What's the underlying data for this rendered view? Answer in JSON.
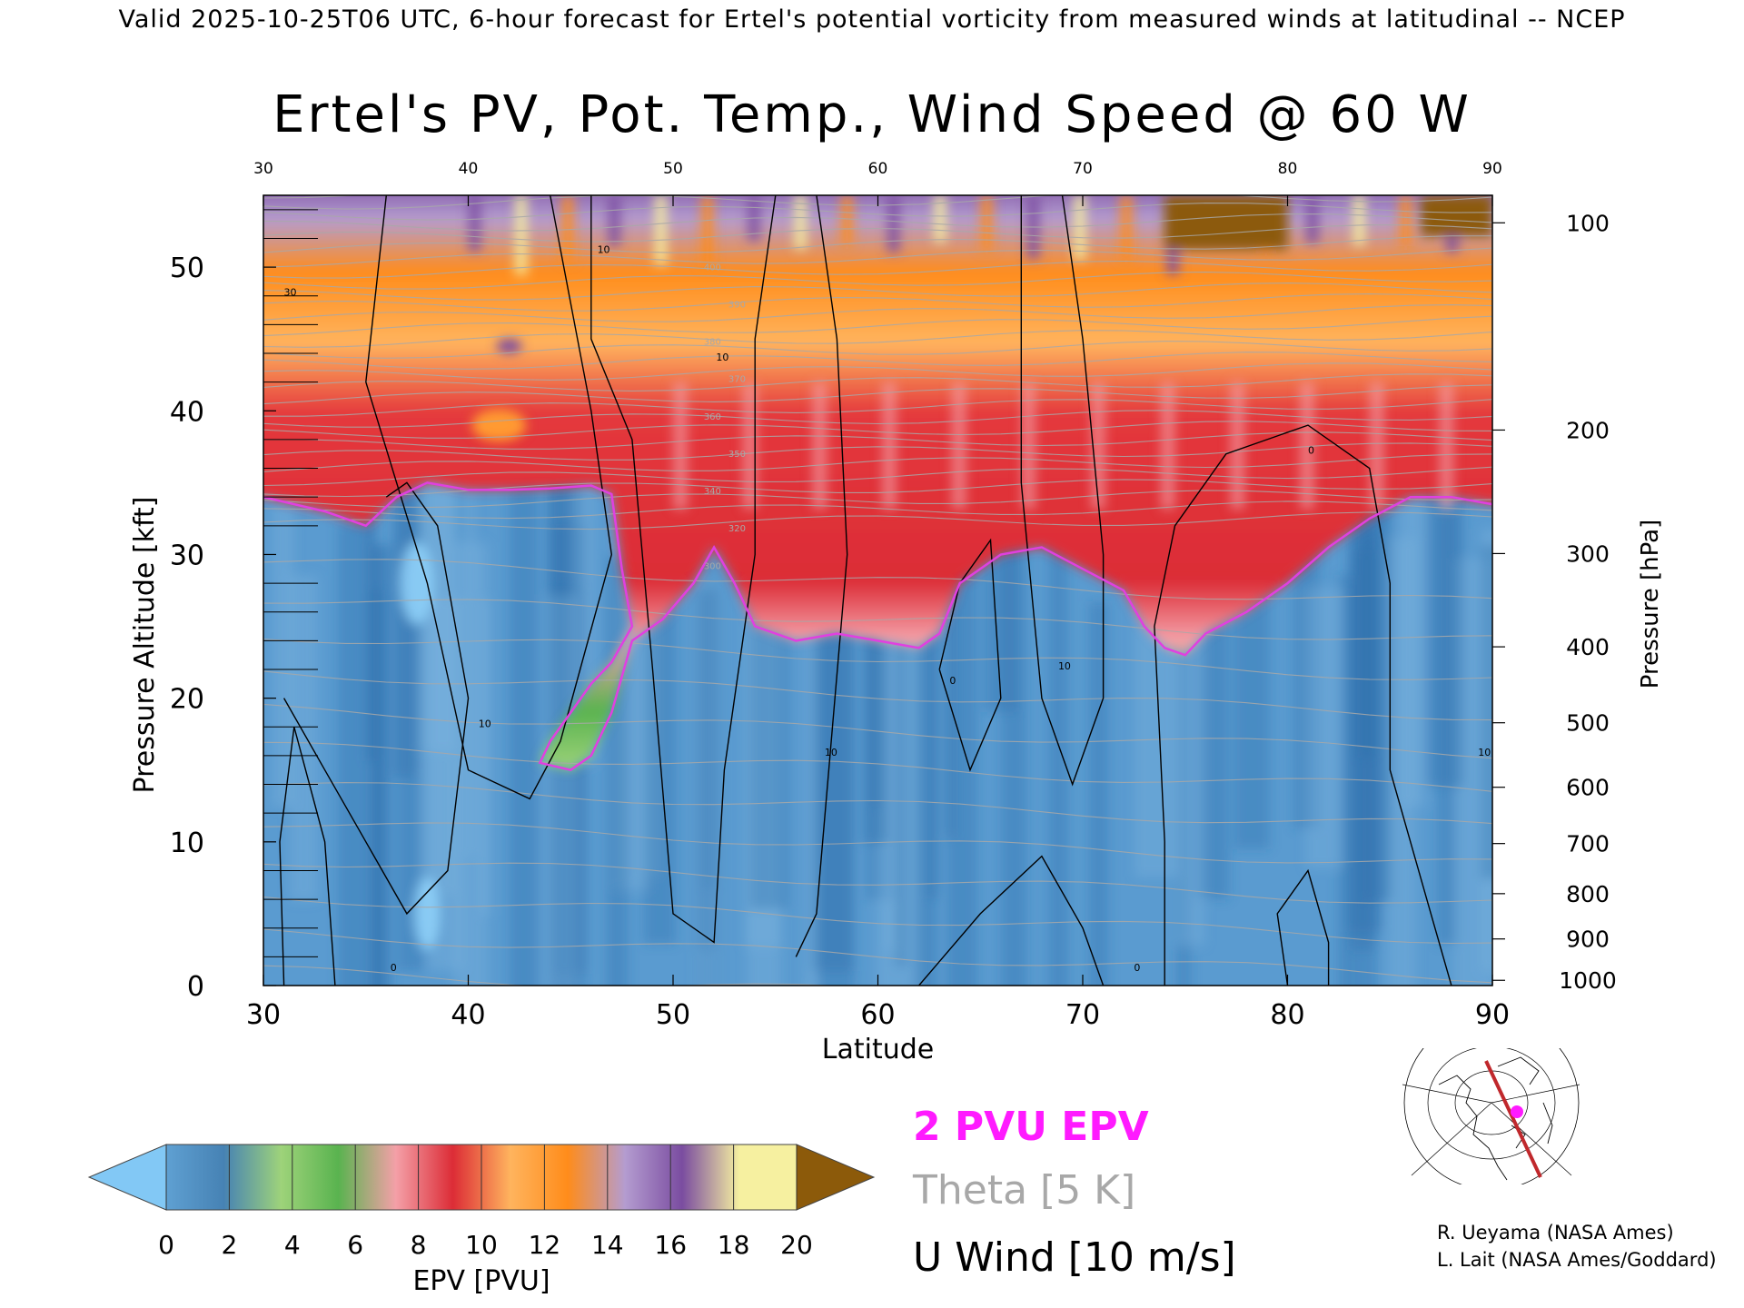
{
  "header": {
    "valid_line": "Valid 2025-10-25T06 UTC, 6-hour forecast for Ertel's potential vorticity from measured winds at latitudinal -- NCEP",
    "title": "Ertel's PV, Pot. Temp., Wind Speed @ 60 W"
  },
  "chart_data": {
    "type": "heatmap",
    "title": "Ertel's PV, Pot. Temp., Wind Speed @ 60 W",
    "xlabel": "Latitude",
    "ylabel": "Pressure Altitude [kft]",
    "y2label": "Pressure [hPa]",
    "xlim": [
      30,
      90
    ],
    "ylim": [
      0,
      55
    ],
    "x_ticks": [
      30,
      40,
      50,
      60,
      70,
      80,
      90
    ],
    "y_ticks": [
      0,
      10,
      20,
      30,
      40,
      50
    ],
    "pressure_ticks": [
      100,
      200,
      300,
      400,
      500,
      600,
      700,
      800,
      900,
      1000
    ],
    "tropopause_2pvu_kft": [
      [
        30,
        34
      ],
      [
        33,
        33
      ],
      [
        35,
        32
      ],
      [
        36.5,
        34
      ],
      [
        38,
        35
      ],
      [
        40,
        34.5
      ],
      [
        42,
        34.5
      ],
      [
        44,
        34.6
      ],
      [
        46,
        34.8
      ],
      [
        47,
        34.2
      ],
      [
        47.5,
        29
      ],
      [
        48,
        25
      ],
      [
        47,
        22.5
      ],
      [
        46,
        21
      ],
      [
        45,
        19
      ],
      [
        44,
        17
      ],
      [
        43.5,
        15.5
      ],
      [
        45,
        15
      ],
      [
        46,
        16
      ],
      [
        47,
        19
      ],
      [
        48,
        24
      ],
      [
        49.5,
        25.5
      ],
      [
        51,
        28
      ],
      [
        52,
        30.5
      ],
      [
        53,
        28
      ],
      [
        54,
        25
      ],
      [
        56,
        24
      ],
      [
        58,
        24.5
      ],
      [
        60,
        24
      ],
      [
        62,
        23.5
      ],
      [
        63,
        24.5
      ],
      [
        64,
        28
      ],
      [
        66,
        30
      ],
      [
        68,
        30.5
      ],
      [
        70,
        29
      ],
      [
        72,
        27.5
      ],
      [
        73,
        25
      ],
      [
        74,
        23.5
      ],
      [
        75,
        23
      ],
      [
        76,
        24.5
      ],
      [
        78,
        26
      ],
      [
        80,
        28
      ],
      [
        82,
        30.5
      ],
      [
        84,
        32.5
      ],
      [
        86,
        34
      ],
      [
        88,
        34
      ],
      [
        90,
        33.5
      ]
    ],
    "epv_colorbar": {
      "label": "EPV [PVU]",
      "ticks": [
        0,
        2,
        4,
        6,
        8,
        10,
        12,
        14,
        16,
        18,
        20
      ],
      "colors": [
        "#5fa0d2",
        "#4682b4",
        "#9ed37a",
        "#59b34f",
        "#f4a0a8",
        "#dc2c36",
        "#ffb45e",
        "#ff8c1a",
        "#b49cd0",
        "#7a4ca0",
        "#f6f0a0"
      ],
      "under_color": "#82c8f5",
      "over_color": "#8c5a0a"
    },
    "legend": {
      "pvu": "2 PVU EPV",
      "theta": "Theta [5 K]",
      "u": "U Wind [10 m/s]"
    },
    "contour_labels": [
      "0",
      "10",
      "20",
      "30"
    ],
    "theta_labels": [
      "300",
      "320",
      "340",
      "350",
      "360",
      "370",
      "380",
      "390",
      "400"
    ]
  },
  "credits": {
    "line1": "R. Ueyama (NASA Ames)",
    "line2": "L. Lait (NASA Ames/Goddard)"
  },
  "colors": {
    "tropopause": "#e040e0",
    "theta": "#a8a8a8",
    "wind": "#000000",
    "stratosphere_low": "#59b34f",
    "stratosphere_mid": "#dc2c36",
    "stratosphere_high": "#ff8c1a",
    "troposphere": "#4f8fc8"
  }
}
